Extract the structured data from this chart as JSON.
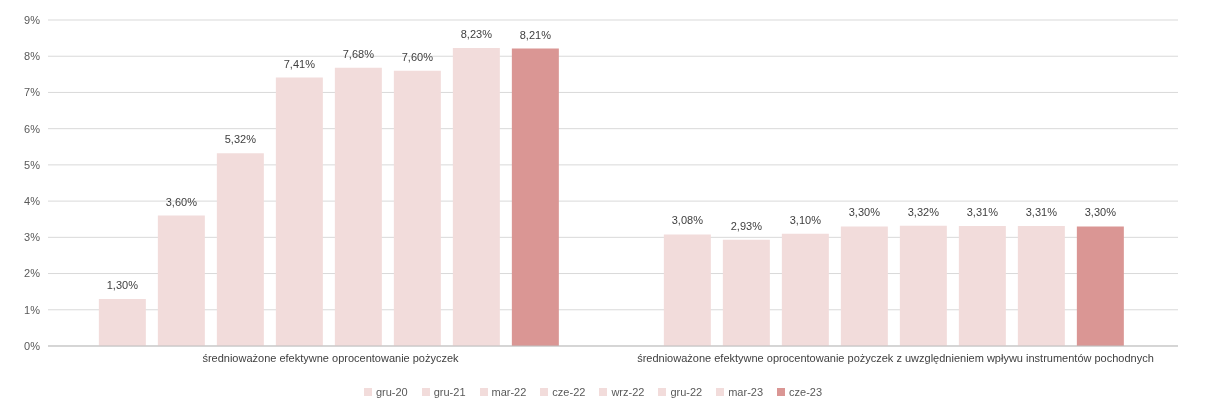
{
  "chart_data": {
    "type": "bar",
    "categories": [
      "średnioważone efektywne oprocentowanie pożyczek",
      "średnioważone efektywne oprocentowanie pożyczek z uwzględnieniem wpływu instrumentów pochodnych"
    ],
    "series": [
      {
        "name": "gru-20",
        "color": "#f2dcdb",
        "values": [
          1.3,
          3.08
        ],
        "value_labels": [
          "1,30%",
          "3,08%"
        ]
      },
      {
        "name": "gru-21",
        "color": "#f2dcdb",
        "values": [
          3.6,
          2.93
        ],
        "value_labels": [
          "3,60%",
          "2,93%"
        ]
      },
      {
        "name": "mar-22",
        "color": "#f2dcdb",
        "values": [
          5.32,
          3.1
        ],
        "value_labels": [
          "5,32%",
          "3,10%"
        ]
      },
      {
        "name": "cze-22",
        "color": "#f2dcdb",
        "values": [
          7.41,
          3.3
        ],
        "value_labels": [
          "7,41%",
          "3,30%"
        ]
      },
      {
        "name": "wrz-22",
        "color": "#f2dcdb",
        "values": [
          7.68,
          3.32
        ],
        "value_labels": [
          "7,68%",
          "3,32%"
        ]
      },
      {
        "name": "gru-22",
        "color": "#f2dcdb",
        "values": [
          7.6,
          3.31
        ],
        "value_labels": [
          "7,60%",
          "3,31%"
        ]
      },
      {
        "name": "mar-23",
        "color": "#f2dcdb",
        "values": [
          8.23,
          3.31
        ],
        "value_labels": [
          "8,23%",
          "3,31%"
        ]
      },
      {
        "name": "cze-23",
        "color": "#da9694",
        "values": [
          8.21,
          3.3
        ],
        "value_labels": [
          "8,21%",
          "3,30%"
        ]
      }
    ],
    "ylim": [
      0,
      9
    ],
    "yticks": [
      {
        "value": 0,
        "label": "0%"
      },
      {
        "value": 1,
        "label": "1%"
      },
      {
        "value": 2,
        "label": "2%"
      },
      {
        "value": 3,
        "label": "3%"
      },
      {
        "value": 4,
        "label": "4%"
      },
      {
        "value": 5,
        "label": "5%"
      },
      {
        "value": 6,
        "label": "6%"
      },
      {
        "value": 7,
        "label": "7%"
      },
      {
        "value": 8,
        "label": "8%"
      },
      {
        "value": 9,
        "label": "9%"
      }
    ],
    "grid": "y",
    "legend": "bottom"
  }
}
